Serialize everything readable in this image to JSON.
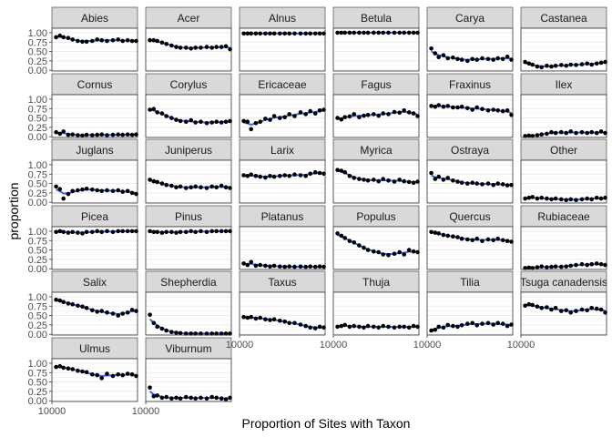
{
  "chart_data": {
    "type": "scatter",
    "facet_layout": "wrap",
    "xlabel": "Proportion of Sites with Taxon",
    "ylabel": "proportion",
    "x_axis": {
      "scale": "log",
      "lim": [
        10000,
        70000
      ],
      "tick_values": [
        10000
      ],
      "tick_labels": [
        "10000"
      ]
    },
    "y_axis": {
      "lim": [
        -0.02,
        1.12
      ],
      "tick_values": [
        0.0,
        0.25,
        0.5,
        0.75,
        1.0
      ],
      "tick_labels": [
        "0.00",
        "0.25",
        "0.50",
        "0.75",
        "1.00"
      ]
    },
    "grid": true,
    "smooth_line_color": "#3366ff",
    "point_color": "#000000",
    "strip_color": "#d9d9d9",
    "x_values": [
      11000,
      12000,
      13000,
      14500,
      16000,
      18000,
      20000,
      22000,
      25000,
      28000,
      31000,
      35000,
      40000,
      45000,
      50000,
      56000,
      62000,
      68000
    ],
    "panels": [
      {
        "name": "Abies",
        "values": [
          0.88,
          0.92,
          0.88,
          0.86,
          0.82,
          0.78,
          0.76,
          0.76,
          0.78,
          0.82,
          0.8,
          0.78,
          0.8,
          0.82,
          0.78,
          0.8,
          0.78,
          0.78
        ]
      },
      {
        "name": "Acer",
        "values": [
          0.8,
          0.8,
          0.78,
          0.74,
          0.7,
          0.66,
          0.62,
          0.6,
          0.6,
          0.58,
          0.6,
          0.6,
          0.62,
          0.6,
          0.62,
          0.62,
          0.64,
          0.56
        ]
      },
      {
        "name": "Alnus",
        "values": [
          0.98,
          0.98,
          0.98,
          0.98,
          0.98,
          0.98,
          0.98,
          0.98,
          0.98,
          0.98,
          0.98,
          0.98,
          0.98,
          0.98,
          0.98,
          0.98,
          0.98,
          0.98
        ]
      },
      {
        "name": "Betula",
        "values": [
          1.0,
          1.0,
          1.0,
          1.0,
          1.0,
          1.0,
          1.0,
          1.0,
          1.0,
          1.0,
          1.0,
          1.0,
          1.0,
          1.0,
          1.0,
          1.0,
          1.0,
          1.0
        ]
      },
      {
        "name": "Carya",
        "values": [
          0.58,
          0.45,
          0.35,
          0.4,
          0.32,
          0.34,
          0.3,
          0.28,
          0.25,
          0.3,
          0.28,
          0.32,
          0.3,
          0.28,
          0.32,
          0.3,
          0.36,
          0.28
        ]
      },
      {
        "name": "Castanea",
        "values": [
          0.22,
          0.18,
          0.15,
          0.1,
          0.08,
          0.12,
          0.1,
          0.12,
          0.14,
          0.12,
          0.15,
          0.14,
          0.16,
          0.18,
          0.15,
          0.18,
          0.2,
          0.22
        ]
      },
      {
        "name": "Cornus",
        "values": [
          0.12,
          0.08,
          0.14,
          0.05,
          0.06,
          0.04,
          0.03,
          0.05,
          0.04,
          0.05,
          0.06,
          0.04,
          0.05,
          0.06,
          0.05,
          0.06,
          0.05,
          0.06
        ]
      },
      {
        "name": "Corylus",
        "values": [
          0.72,
          0.74,
          0.65,
          0.62,
          0.55,
          0.5,
          0.45,
          0.42,
          0.4,
          0.44,
          0.38,
          0.4,
          0.36,
          0.38,
          0.4,
          0.38,
          0.4,
          0.42
        ]
      },
      {
        "name": "Ericaceae",
        "values": [
          0.42,
          0.4,
          0.2,
          0.36,
          0.4,
          0.48,
          0.45,
          0.55,
          0.5,
          0.52,
          0.6,
          0.55,
          0.65,
          0.6,
          0.68,
          0.62,
          0.7,
          0.72
        ]
      },
      {
        "name": "Fagus",
        "values": [
          0.5,
          0.46,
          0.52,
          0.54,
          0.6,
          0.52,
          0.56,
          0.58,
          0.6,
          0.56,
          0.62,
          0.6,
          0.66,
          0.64,
          0.7,
          0.65,
          0.62,
          0.55
        ]
      },
      {
        "name": "Fraxinus",
        "values": [
          0.82,
          0.8,
          0.84,
          0.8,
          0.82,
          0.78,
          0.78,
          0.8,
          0.76,
          0.72,
          0.78,
          0.74,
          0.7,
          0.72,
          0.7,
          0.68,
          0.7,
          0.58
        ]
      },
      {
        "name": "Ilex",
        "values": [
          0.02,
          0.03,
          0.02,
          0.04,
          0.06,
          0.08,
          0.12,
          0.1,
          0.12,
          0.1,
          0.14,
          0.1,
          0.12,
          0.1,
          0.12,
          0.1,
          0.14,
          0.1
        ]
      },
      {
        "name": "Juglans",
        "values": [
          0.42,
          0.35,
          0.1,
          0.22,
          0.3,
          0.32,
          0.34,
          0.36,
          0.34,
          0.32,
          0.3,
          0.32,
          0.3,
          0.32,
          0.28,
          0.3,
          0.25,
          0.22
        ]
      },
      {
        "name": "Juniperus",
        "values": [
          0.6,
          0.56,
          0.54,
          0.5,
          0.46,
          0.44,
          0.4,
          0.42,
          0.38,
          0.4,
          0.42,
          0.4,
          0.38,
          0.42,
          0.4,
          0.44,
          0.4,
          0.38
        ]
      },
      {
        "name": "Larix",
        "values": [
          0.72,
          0.7,
          0.74,
          0.7,
          0.68,
          0.66,
          0.7,
          0.68,
          0.7,
          0.72,
          0.7,
          0.74,
          0.72,
          0.7,
          0.76,
          0.8,
          0.78,
          0.76
        ]
      },
      {
        "name": "Myrica",
        "values": [
          0.86,
          0.84,
          0.8,
          0.7,
          0.65,
          0.62,
          0.6,
          0.58,
          0.6,
          0.56,
          0.62,
          0.58,
          0.55,
          0.6,
          0.56,
          0.54,
          0.52,
          0.55
        ]
      },
      {
        "name": "Ostraya",
        "values": [
          0.78,
          0.62,
          0.68,
          0.6,
          0.65,
          0.58,
          0.55,
          0.52,
          0.5,
          0.52,
          0.5,
          0.48,
          0.5,
          0.46,
          0.5,
          0.48,
          0.45,
          0.46
        ]
      },
      {
        "name": "Other",
        "values": [
          0.1,
          0.12,
          0.14,
          0.1,
          0.12,
          0.1,
          0.08,
          0.1,
          0.08,
          0.06,
          0.08,
          0.06,
          0.08,
          0.1,
          0.08,
          0.12,
          0.1,
          0.12
        ]
      },
      {
        "name": "Picea",
        "values": [
          0.98,
          1.0,
          0.98,
          0.96,
          0.98,
          0.96,
          0.94,
          0.98,
          0.98,
          1.0,
          0.98,
          1.0,
          0.98,
          1.0,
          1.0,
          1.0,
          1.0,
          1.0
        ]
      },
      {
        "name": "Pinus",
        "values": [
          1.0,
          0.98,
          0.98,
          0.96,
          0.98,
          0.98,
          0.96,
          0.98,
          0.98,
          1.0,
          0.98,
          1.0,
          0.98,
          1.0,
          1.0,
          1.0,
          1.0,
          1.0
        ]
      },
      {
        "name": "Platanus",
        "values": [
          0.14,
          0.1,
          0.18,
          0.08,
          0.1,
          0.08,
          0.06,
          0.08,
          0.06,
          0.05,
          0.06,
          0.05,
          0.06,
          0.05,
          0.06,
          0.05,
          0.06,
          0.05
        ]
      },
      {
        "name": "Populus",
        "values": [
          0.94,
          0.88,
          0.82,
          0.74,
          0.7,
          0.62,
          0.56,
          0.5,
          0.46,
          0.44,
          0.38,
          0.36,
          0.4,
          0.44,
          0.38,
          0.5,
          0.46,
          0.44
        ]
      },
      {
        "name": "Quercus",
        "values": [
          0.98,
          0.96,
          0.94,
          0.9,
          0.88,
          0.86,
          0.84,
          0.8,
          0.78,
          0.76,
          0.8,
          0.74,
          0.78,
          0.76,
          0.8,
          0.76,
          0.74,
          0.72
        ]
      },
      {
        "name": "Rubiaceae",
        "values": [
          0.02,
          0.03,
          0.02,
          0.04,
          0.06,
          0.04,
          0.05,
          0.06,
          0.05,
          0.06,
          0.08,
          0.1,
          0.12,
          0.1,
          0.12,
          0.14,
          0.12,
          0.1
        ]
      },
      {
        "name": "Salix",
        "values": [
          0.92,
          0.9,
          0.86,
          0.82,
          0.8,
          0.76,
          0.74,
          0.7,
          0.64,
          0.6,
          0.62,
          0.58,
          0.55,
          0.5,
          0.55,
          0.58,
          0.65,
          0.62
        ]
      },
      {
        "name": "Shepherdia",
        "values": [
          0.52,
          0.3,
          0.2,
          0.15,
          0.1,
          0.06,
          0.04,
          0.03,
          0.02,
          0.02,
          0.02,
          0.02,
          0.02,
          0.02,
          0.02,
          0.02,
          0.02,
          0.02
        ]
      },
      {
        "name": "Taxus",
        "values": [
          0.46,
          0.44,
          0.46,
          0.42,
          0.44,
          0.4,
          0.38,
          0.4,
          0.36,
          0.34,
          0.3,
          0.3,
          0.26,
          0.22,
          0.18,
          0.16,
          0.2,
          0.18
        ]
      },
      {
        "name": "Thuja",
        "values": [
          0.2,
          0.22,
          0.25,
          0.2,
          0.22,
          0.2,
          0.18,
          0.22,
          0.2,
          0.18,
          0.22,
          0.2,
          0.18,
          0.2,
          0.2,
          0.18,
          0.22,
          0.2
        ]
      },
      {
        "name": "Tilia",
        "values": [
          0.1,
          0.12,
          0.2,
          0.18,
          0.25,
          0.22,
          0.2,
          0.24,
          0.28,
          0.3,
          0.24,
          0.28,
          0.3,
          0.26,
          0.3,
          0.28,
          0.22,
          0.26
        ]
      },
      {
        "name": "Tsuga canadensis",
        "values": [
          0.76,
          0.8,
          0.78,
          0.74,
          0.7,
          0.72,
          0.66,
          0.7,
          0.62,
          0.64,
          0.58,
          0.62,
          0.66,
          0.64,
          0.7,
          0.68,
          0.66,
          0.58
        ]
      },
      {
        "name": "Ulmus",
        "values": [
          0.9,
          0.92,
          0.88,
          0.86,
          0.84,
          0.8,
          0.78,
          0.76,
          0.7,
          0.68,
          0.6,
          0.72,
          0.66,
          0.7,
          0.68,
          0.72,
          0.7,
          0.66
        ]
      },
      {
        "name": "Viburnum",
        "values": [
          0.35,
          0.12,
          0.14,
          0.08,
          0.1,
          0.06,
          0.08,
          0.06,
          0.1,
          0.08,
          0.06,
          0.08,
          0.06,
          0.1,
          0.08,
          0.06,
          0.04,
          0.08
        ]
      }
    ]
  }
}
